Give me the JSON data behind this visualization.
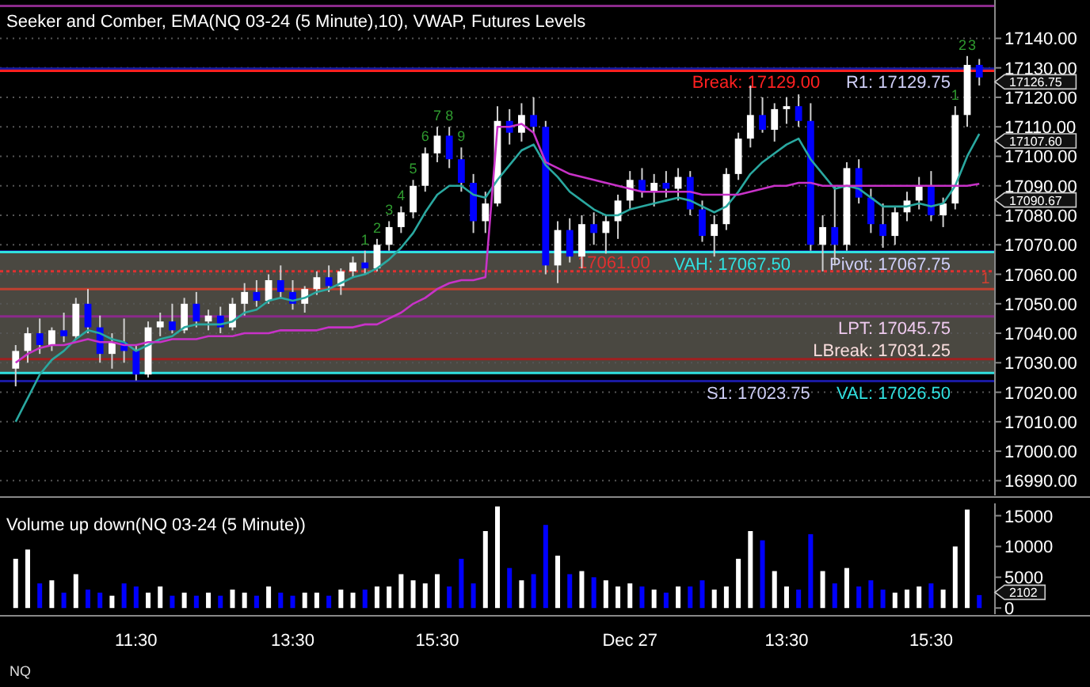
{
  "chart_data": [
    {
      "type": "candlestick",
      "title": "Seeker and Comber, EMA(NQ 03-24 (5 Minute),10), VWAP, Futures Levels",
      "categories": [
        null,
        null,
        null,
        null,
        null,
        null,
        null,
        null,
        null,
        null,
        null,
        null,
        null,
        null,
        null,
        null,
        null,
        null,
        null,
        null,
        null,
        null,
        null,
        null,
        null,
        null,
        null,
        null,
        null,
        null,
        null,
        null,
        null,
        null,
        null,
        null,
        null,
        null,
        null,
        null,
        null,
        null,
        null,
        null,
        null,
        null,
        null,
        null,
        null,
        null,
        null,
        null,
        null,
        null,
        null,
        null,
        null,
        null,
        null,
        null,
        null,
        null,
        null,
        null,
        null,
        null,
        null,
        null,
        null,
        null,
        null,
        null,
        null,
        null,
        null,
        null,
        null,
        null,
        null,
        null,
        null
      ],
      "ohlc": [
        [
          17028,
          17036,
          17022,
          17034
        ],
        [
          17034,
          17042,
          17030,
          17040
        ],
        [
          17040,
          17045,
          17033,
          17036
        ],
        [
          17036,
          17042,
          17034,
          17041
        ],
        [
          17041,
          17047,
          17037,
          17039
        ],
        [
          17039,
          17052,
          17038,
          17050
        ],
        [
          17050,
          17055,
          17040,
          17042
        ],
        [
          17042,
          17046,
          17030,
          17033
        ],
        [
          17033,
          17040,
          17028,
          17037
        ],
        [
          17037,
          17045,
          17030,
          17034
        ],
        [
          17034,
          17036,
          17024,
          17026
        ],
        [
          17026,
          17044,
          17025,
          17042
        ],
        [
          17042,
          17047,
          17039,
          17044
        ],
        [
          17044,
          17050,
          17040,
          17041
        ],
        [
          17041,
          17052,
          17040,
          17050
        ],
        [
          17050,
          17054,
          17042,
          17044
        ],
        [
          17044,
          17048,
          17041,
          17046
        ],
        [
          17046,
          17049,
          17040,
          17042
        ],
        [
          17042,
          17052,
          17041,
          17050
        ],
        [
          17050,
          17057,
          17046,
          17054
        ],
        [
          17054,
          17058,
          17049,
          17051
        ],
        [
          17051,
          17060,
          17050,
          17058
        ],
        [
          17058,
          17063,
          17052,
          17054
        ],
        [
          17054,
          17058,
          17048,
          17050
        ],
        [
          17050,
          17056,
          17047,
          17055
        ],
        [
          17055,
          17061,
          17053,
          17059
        ],
        [
          17059,
          17063,
          17054,
          17056
        ],
        [
          17056,
          17062,
          17053,
          17061
        ],
        [
          17061,
          17066,
          17059,
          17064
        ],
        [
          17064,
          17068,
          17060,
          17062
        ],
        [
          17062,
          17072,
          17061,
          17070
        ],
        [
          17070,
          17078,
          17068,
          17076
        ],
        [
          17076,
          17083,
          17074,
          17081
        ],
        [
          17081,
          17092,
          17079,
          17090
        ],
        [
          17090,
          17103,
          17088,
          17101
        ],
        [
          17101,
          17110,
          17098,
          17107
        ],
        [
          17107,
          17110,
          17096,
          17099
        ],
        [
          17099,
          17103,
          17088,
          17091
        ],
        [
          17091,
          17094,
          17074,
          17078
        ],
        [
          17078,
          17088,
          17074,
          17084
        ],
        [
          17084,
          17117,
          17083,
          17112
        ],
        [
          17112,
          17116,
          17104,
          17108
        ],
        [
          17108,
          17118,
          17105,
          17114
        ],
        [
          17114,
          17120,
          17108,
          17110
        ],
        [
          17110,
          17112,
          17060,
          17063
        ],
        [
          17063,
          17078,
          17057,
          17075
        ],
        [
          17075,
          17079,
          17064,
          17066
        ],
        [
          17066,
          17080,
          17062,
          17077
        ],
        [
          17077,
          17081,
          17070,
          17074
        ],
        [
          17074,
          17080,
          17067,
          17078
        ],
        [
          17078,
          17087,
          17072,
          17085
        ],
        [
          17085,
          17095,
          17082,
          17092
        ],
        [
          17092,
          17096,
          17086,
          17088
        ],
        [
          17088,
          17094,
          17083,
          17091
        ],
        [
          17091,
          17095,
          17086,
          17089
        ],
        [
          17089,
          17096,
          17085,
          17093
        ],
        [
          17093,
          17095,
          17080,
          17082
        ],
        [
          17082,
          17085,
          17071,
          17073
        ],
        [
          17073,
          17080,
          17066,
          17077
        ],
        [
          17077,
          17096,
          17075,
          17094
        ],
        [
          17094,
          17108,
          17092,
          17106
        ],
        [
          17106,
          17124,
          17103,
          17114
        ],
        [
          17114,
          17120,
          17108,
          17109
        ],
        [
          17109,
          17118,
          17105,
          17116
        ],
        [
          17116,
          17120,
          17111,
          17117
        ],
        [
          17117,
          17121,
          17110,
          17112
        ],
        [
          17112,
          17118,
          17068,
          17070
        ],
        [
          17070,
          17080,
          17061,
          17076
        ],
        [
          17076,
          17090,
          17063,
          17070
        ],
        [
          17070,
          17098,
          17068,
          17096
        ],
        [
          17096,
          17099,
          17084,
          17086
        ],
        [
          17086,
          17089,
          17074,
          17077
        ],
        [
          17077,
          17084,
          17069,
          17073
        ],
        [
          17073,
          17083,
          17070,
          17081
        ],
        [
          17081,
          17088,
          17078,
          17085
        ],
        [
          17085,
          17093,
          17082,
          17090
        ],
        [
          17090,
          17095,
          17078,
          17080
        ],
        [
          17080,
          17086,
          17076,
          17084
        ],
        [
          17084,
          17117,
          17082,
          17114
        ],
        [
          17114,
          17134,
          17110,
          17131
        ],
        [
          17131,
          17133,
          17124,
          17126.75
        ]
      ],
      "colors": [
        "#ffffff",
        "#ffffff",
        "#0000ff",
        "#ffffff",
        "#0000ff",
        "#ffffff",
        "#0000ff",
        "#0000ff",
        "#ffffff",
        "#0000ff",
        "#0000ff",
        "#ffffff",
        "#ffffff",
        "#0000ff",
        "#ffffff",
        "#0000ff",
        "#ffffff",
        "#0000ff",
        "#ffffff",
        "#ffffff",
        "#0000ff",
        "#ffffff",
        "#0000ff",
        "#0000ff",
        "#ffffff",
        "#ffffff",
        "#0000ff",
        "#ffffff",
        "#ffffff",
        "#0000ff",
        "#ffffff",
        "#ffffff",
        "#ffffff",
        "#ffffff",
        "#ffffff",
        "#ffffff",
        "#0000ff",
        "#0000ff",
        "#0000ff",
        "#ffffff",
        "#ffffff",
        "#0000ff",
        "#ffffff",
        "#0000ff",
        "#0000ff",
        "#ffffff",
        "#0000ff",
        "#ffffff",
        "#0000ff",
        "#ffffff",
        "#ffffff",
        "#ffffff",
        "#0000ff",
        "#ffffff",
        "#0000ff",
        "#ffffff",
        "#0000ff",
        "#0000ff",
        "#ffffff",
        "#ffffff",
        "#ffffff",
        "#ffffff",
        "#0000ff",
        "#ffffff",
        "#ffffff",
        "#0000ff",
        "#0000ff",
        "#ffffff",
        "#0000ff",
        "#ffffff",
        "#0000ff",
        "#0000ff",
        "#0000ff",
        "#ffffff",
        "#ffffff",
        "#ffffff",
        "#0000ff",
        "#ffffff",
        "#ffffff",
        "#ffffff",
        "#0000ff"
      ],
      "series": [
        {
          "type": "line",
          "color": "#2aa8a0",
          "values": [
            17010,
            17018,
            17026,
            17031,
            17034,
            17038,
            17041,
            17040,
            17038,
            17037,
            17034,
            17036,
            17038,
            17039,
            17042,
            17043,
            17043,
            17043,
            17044,
            17047,
            17048,
            17051,
            17052,
            17051,
            17052,
            17054,
            17055,
            17057,
            17059,
            17060,
            17062,
            17065,
            17069,
            17074,
            17081,
            17087,
            17090,
            17090,
            17087,
            17086,
            17092,
            17097,
            17102,
            17104,
            17097,
            17093,
            17088,
            17085,
            17082,
            17080,
            17080,
            17082,
            17083,
            17084,
            17085,
            17086,
            17085,
            17083,
            17081,
            17083,
            17088,
            17094,
            17098,
            17101,
            17104,
            17106,
            17099,
            17094,
            17089,
            17090,
            17089,
            17086,
            17083,
            17083,
            17083,
            17084,
            17083,
            17084,
            17090,
            17100,
            17107.6
          ]
        },
        {
          "type": "line",
          "color": "#c832c8",
          "values": [
            17030,
            17033,
            17035,
            17036,
            17036,
            17037,
            17038,
            17037,
            17037,
            17036,
            17036,
            17037,
            17037,
            17038,
            17038,
            17038,
            17039,
            17039,
            17039,
            17040,
            17040,
            17040,
            17041,
            17041,
            17041,
            17041,
            17042,
            17042,
            17042,
            17043,
            17043,
            17045,
            17047,
            17050,
            17052,
            17055,
            17057,
            17058,
            17058,
            17059,
            17110,
            17110,
            17111,
            17108,
            17098,
            17096,
            17094,
            17093,
            17092,
            17091,
            17090,
            17089,
            17088,
            17088,
            17088,
            17088,
            17088,
            17087,
            17087,
            17087,
            17087,
            17088,
            17089,
            17090,
            17090,
            17091,
            17091,
            17090,
            17090,
            17090,
            17090,
            17090,
            17090,
            17090,
            17090,
            17090,
            17090,
            17090,
            17090,
            17090,
            17090.67
          ]
        }
      ],
      "ylim": [
        16985,
        17153
      ],
      "yticks": [
        {
          "value": 16990,
          "label": "16990.00"
        },
        {
          "value": 17000,
          "label": "17000.00"
        },
        {
          "value": 17010,
          "label": "17010.00"
        },
        {
          "value": 17020,
          "label": "17020.00"
        },
        {
          "value": 17030,
          "label": "17030.00"
        },
        {
          "value": 17040,
          "label": "17040.00"
        },
        {
          "value": 17050,
          "label": "17050.00"
        },
        {
          "value": 17060,
          "label": "17060.00"
        },
        {
          "value": 17070,
          "label": "17070.00"
        },
        {
          "value": 17080,
          "label": "17080.00"
        },
        {
          "value": 17090,
          "label": "17090.00"
        },
        {
          "value": 17100,
          "label": "17100.00"
        },
        {
          "value": 17110,
          "label": "17110.00"
        },
        {
          "value": 17120,
          "label": "17120.00"
        },
        {
          "value": 17130,
          "label": "17130.00"
        },
        {
          "value": 17140,
          "label": "17140.00"
        }
      ],
      "tick_labels": "y",
      "grid": "y",
      "bands": [
        {
          "axis": "y",
          "from": 17026.5,
          "to": 17067.5,
          "color": "#4a4841"
        }
      ],
      "ref_lines": [
        {
          "axis": "y",
          "value": 17151,
          "color": "#8b2a8b"
        },
        {
          "axis": "y",
          "value": 17129.75,
          "label": "R1: 17129.75",
          "color": "#1a1aa0"
        },
        {
          "axis": "y",
          "value": 17129,
          "label": "Break: 17129.00",
          "color": "#ff2020"
        },
        {
          "axis": "y",
          "value": 17067.75,
          "label": "Pivot: 17067.75",
          "color": "#1a1aa0"
        },
        {
          "axis": "y",
          "value": 17067.5,
          "label": "VAH: 17067.50",
          "color": "#30e0e0"
        },
        {
          "axis": "y",
          "value": 17061,
          "label": "17061.00",
          "color": "#e03030",
          "line_style": "dotted"
        },
        {
          "axis": "y",
          "value": 17055,
          "color": "#c04030"
        },
        {
          "axis": "y",
          "value": 17045.75,
          "label": "LPT: 17045.75",
          "color": "#8b2a8b"
        },
        {
          "axis": "y",
          "value": 17031.25,
          "label": "LBreak: 17031.25",
          "color": "#a02020"
        },
        {
          "axis": "y",
          "value": 17026.5,
          "label": "VAL: 17026.50",
          "color": "#30e0e0"
        },
        {
          "axis": "y",
          "value": 17023.75,
          "label": "S1: 17023.75",
          "color": "#1a1aa0"
        }
      ],
      "annotations": [
        "1",
        "2",
        "3",
        "4",
        "5",
        "6",
        "7",
        "8",
        "9",
        "1",
        "2",
        "3",
        "1",
        "17126.75",
        "17107.60",
        "17090.67"
      ]
    },
    {
      "type": "bar",
      "title": "Volume up down(NQ 03-24 (5 Minute))",
      "categories": [
        null,
        null,
        null,
        null,
        null,
        null,
        null,
        null,
        null,
        null,
        "11:30",
        null,
        null,
        null,
        null,
        null,
        null,
        null,
        null,
        null,
        null,
        null,
        null,
        "13:30",
        null,
        null,
        null,
        null,
        null,
        null,
        null,
        null,
        null,
        null,
        null,
        "15:30",
        null,
        null,
        null,
        null,
        null,
        null,
        null,
        null,
        null,
        null,
        null,
        null,
        null,
        null,
        null,
        "Dec 27",
        null,
        null,
        null,
        null,
        null,
        null,
        null,
        null,
        null,
        null,
        null,
        null,
        "13:30",
        null,
        null,
        null,
        null,
        null,
        null,
        null,
        null,
        null,
        null,
        null,
        "15:30",
        null,
        null,
        null,
        null
      ],
      "values": [
        8000,
        9500,
        4000,
        4500,
        2500,
        5500,
        3000,
        2500,
        2000,
        4000,
        3500,
        2500,
        3500,
        2000,
        2500,
        2000,
        2500,
        2000,
        3000,
        2500,
        2000,
        3500,
        2500,
        2000,
        2500,
        2500,
        2000,
        3000,
        2500,
        3000,
        3500,
        3500,
        5500,
        4500,
        4000,
        5500,
        3500,
        8000,
        4000,
        12500,
        16500,
        6500,
        4500,
        5500,
        13500,
        8500,
        5500,
        6000,
        5000,
        4500,
        3500,
        4000,
        3500,
        3000,
        2500,
        3500,
        3500,
        4500,
        3000,
        3500,
        8000,
        12500,
        11000,
        6000,
        3500,
        3000,
        12000,
        6000,
        4000,
        6500,
        3500,
        4500,
        3000,
        2500,
        3000,
        3500,
        4000,
        3000,
        10000,
        16000,
        2102
      ],
      "colors": [
        "#ffffff",
        "#ffffff",
        "#0000ff",
        "#ffffff",
        "#0000ff",
        "#ffffff",
        "#0000ff",
        "#0000ff",
        "#ffffff",
        "#0000ff",
        "#0000ff",
        "#ffffff",
        "#ffffff",
        "#0000ff",
        "#ffffff",
        "#0000ff",
        "#ffffff",
        "#0000ff",
        "#ffffff",
        "#ffffff",
        "#0000ff",
        "#ffffff",
        "#0000ff",
        "#0000ff",
        "#ffffff",
        "#ffffff",
        "#0000ff",
        "#ffffff",
        "#ffffff",
        "#0000ff",
        "#ffffff",
        "#ffffff",
        "#ffffff",
        "#ffffff",
        "#ffffff",
        "#ffffff",
        "#0000ff",
        "#0000ff",
        "#0000ff",
        "#ffffff",
        "#ffffff",
        "#0000ff",
        "#ffffff",
        "#0000ff",
        "#0000ff",
        "#ffffff",
        "#0000ff",
        "#ffffff",
        "#0000ff",
        "#ffffff",
        "#ffffff",
        "#ffffff",
        "#0000ff",
        "#ffffff",
        "#0000ff",
        "#ffffff",
        "#0000ff",
        "#0000ff",
        "#ffffff",
        "#ffffff",
        "#ffffff",
        "#ffffff",
        "#0000ff",
        "#ffffff",
        "#ffffff",
        "#0000ff",
        "#0000ff",
        "#ffffff",
        "#0000ff",
        "#ffffff",
        "#0000ff",
        "#0000ff",
        "#0000ff",
        "#ffffff",
        "#ffffff",
        "#ffffff",
        "#0000ff",
        "#ffffff",
        "#ffffff",
        "#ffffff",
        "#0000ff"
      ],
      "ylim": [
        -1000,
        17000
      ],
      "yticks": [
        0,
        5000,
        10000,
        15000
      ],
      "annotations": [
        "2102",
        "NQ"
      ]
    }
  ]
}
